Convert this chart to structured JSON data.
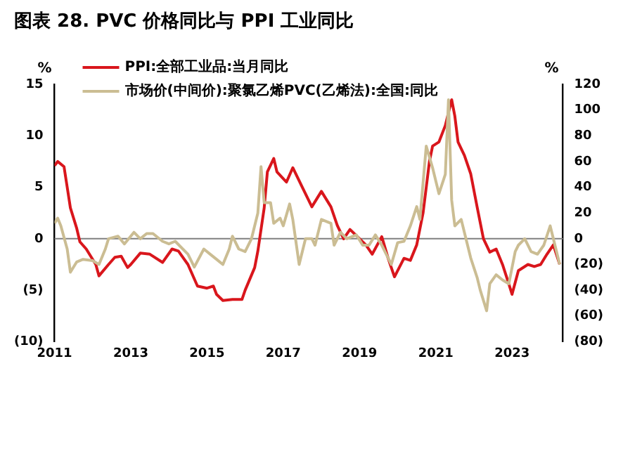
{
  "chart_data": {
    "type": "line",
    "title": "图表 28. PVC 价格同比与 PPI 工业同比",
    "ylabel": "%",
    "y2label": "%",
    "xlim": [
      "2011-01",
      "2024-05"
    ],
    "xticks": [
      "2011",
      "2013",
      "2015",
      "2017",
      "2019",
      "2021",
      "2023"
    ],
    "ylim": [
      -10,
      15
    ],
    "yticks": [
      {
        "value": -10,
        "label": "(10)"
      },
      {
        "value": -5,
        "label": "(5)"
      },
      0,
      5,
      10,
      15
    ],
    "y2lim": [
      -80,
      120
    ],
    "y2ticks": [
      {
        "value": -80,
        "label": "(80)"
      },
      {
        "value": -60,
        "label": "(60)"
      },
      {
        "value": -40,
        "label": "(40)"
      },
      {
        "value": -20,
        "label": "(20)"
      },
      0,
      20,
      40,
      60,
      80,
      100,
      120
    ],
    "ref_lines": [
      {
        "axis": "y",
        "value": 0,
        "color": "#808080"
      }
    ],
    "grid": false,
    "legend": "top left",
    "marker": "none",
    "line_style": "solid",
    "series": [
      {
        "name": "PPI:全部工业品:当月同比",
        "color": "#d9161c",
        "x": [
          "2011-01",
          "2011-02",
          "2011-04",
          "2011-05",
          "2011-06",
          "2011-08",
          "2011-09",
          "2011-11",
          "2012-02",
          "2012-03",
          "2012-06",
          "2012-08",
          "2012-10",
          "2012-12",
          "2013-01",
          "2013-04",
          "2013-07",
          "2013-11",
          "2014-02",
          "2014-04",
          "2014-07",
          "2014-10",
          "2015-01",
          "2015-03",
          "2015-04",
          "2015-06",
          "2015-09",
          "2015-12",
          "2016-01",
          "2016-04",
          "2016-05",
          "2016-07",
          "2016-08",
          "2016-10",
          "2016-11",
          "2017-02",
          "2017-04",
          "2017-07",
          "2017-10",
          "2018-01",
          "2018-04",
          "2018-06",
          "2018-08",
          "2018-10",
          "2019-01",
          "2019-03",
          "2019-05",
          "2019-08",
          "2019-10",
          "2019-12",
          "2020-03",
          "2020-05",
          "2020-07",
          "2020-09",
          "2020-11",
          "2020-12",
          "2021-02",
          "2021-04",
          "2021-06",
          "2021-07",
          "2021-08",
          "2021-10",
          "2021-12",
          "2022-02",
          "2022-04",
          "2022-06",
          "2022-08",
          "2022-10",
          "2022-12",
          "2023-01",
          "2023-03",
          "2023-06",
          "2023-08",
          "2023-10",
          "2023-12",
          "2024-02",
          "2024-04"
        ],
        "values": [
          7.1,
          7.5,
          7.0,
          5,
          3,
          1,
          -0.3,
          -1,
          -2.5,
          -3.6,
          -2.5,
          -1.8,
          -1.7,
          -2.8,
          -2.5,
          -1.4,
          -1.5,
          -2.3,
          -1.0,
          -1.2,
          -2.5,
          -4.6,
          -4.8,
          -4.6,
          -5.4,
          -6.0,
          -5.9,
          -5.9,
          -5.0,
          -2.8,
          -1.2,
          3,
          6.5,
          7.8,
          6.5,
          5.5,
          6.9,
          5,
          3.1,
          4.6,
          3.1,
          1.3,
          0,
          0.9,
          0,
          -0.6,
          -1.5,
          0.2,
          -1.9,
          -3.7,
          -1.9,
          -2.1,
          -0.6,
          2.5,
          7.5,
          9,
          9.4,
          11,
          13.5,
          11.9,
          9.4,
          8.1,
          6.3,
          3.1,
          0,
          -1.3,
          -1.0,
          -2.5,
          -4.4,
          -5.4,
          -3.1,
          -2.5,
          -2.7,
          -2.5,
          -1.5,
          -0.6,
          -2.5
        ]
      },
      {
        "name": "市场价(中间价):聚氯乙烯PVC(乙烯法):全国:同比",
        "color": "#cbbd93",
        "axis": "y2",
        "x": [
          "2011-01",
          "2011-02",
          "2011-03",
          "2011-05",
          "2011-06",
          "2011-08",
          "2011-10",
          "2012-01",
          "2012-03",
          "2012-05",
          "2012-06",
          "2012-09",
          "2012-11",
          "2013-02",
          "2013-04",
          "2013-06",
          "2013-08",
          "2013-11",
          "2014-01",
          "2014-03",
          "2014-07",
          "2014-09",
          "2014-12",
          "2015-02",
          "2015-04",
          "2015-06",
          "2015-08",
          "2015-09",
          "2015-11",
          "2016-01",
          "2016-03",
          "2016-05",
          "2016-06",
          "2016-07",
          "2016-09",
          "2016-10",
          "2016-12",
          "2017-01",
          "2017-03",
          "2017-04",
          "2017-06",
          "2017-08",
          "2017-10",
          "2017-11",
          "2018-01",
          "2018-04",
          "2018-05",
          "2018-07",
          "2018-09",
          "2018-12",
          "2019-02",
          "2019-04",
          "2019-06",
          "2019-08",
          "2019-11",
          "2020-01",
          "2020-03",
          "2020-05",
          "2020-07",
          "2020-08",
          "2020-10",
          "2020-12",
          "2021-01",
          "2021-02",
          "2021-04",
          "2021-05",
          "2021-06",
          "2021-07",
          "2021-09",
          "2021-10",
          "2021-12",
          "2022-02",
          "2022-03",
          "2022-05",
          "2022-06",
          "2022-08",
          "2022-10",
          "2022-12",
          "2023-02",
          "2023-03",
          "2023-05",
          "2023-07",
          "2023-09",
          "2023-11",
          "2024-01",
          "2024-02",
          "2024-04"
        ],
        "values": [
          12,
          16,
          10,
          -8,
          -26,
          -18,
          -16,
          -17,
          -20,
          -8,
          0,
          2,
          -4,
          5,
          0,
          4,
          4,
          -2,
          -4,
          -2,
          -12,
          -22,
          -8,
          -12,
          -16,
          -20,
          -8,
          2,
          -8,
          -10,
          0,
          20,
          56,
          28,
          28,
          12,
          16,
          10,
          27,
          15,
          -20,
          0,
          0,
          -5,
          15,
          12,
          -5,
          5,
          0,
          3,
          -5,
          -5,
          3,
          -5,
          -20,
          -3,
          -2,
          10,
          25,
          15,
          72,
          55,
          45,
          35,
          50,
          108,
          30,
          10,
          15,
          5,
          -15,
          -30,
          -40,
          -56,
          -35,
          -28,
          -32,
          -35,
          -10,
          -5,
          0,
          -10,
          -12,
          -5,
          10,
          0,
          -20
        ]
      }
    ]
  }
}
